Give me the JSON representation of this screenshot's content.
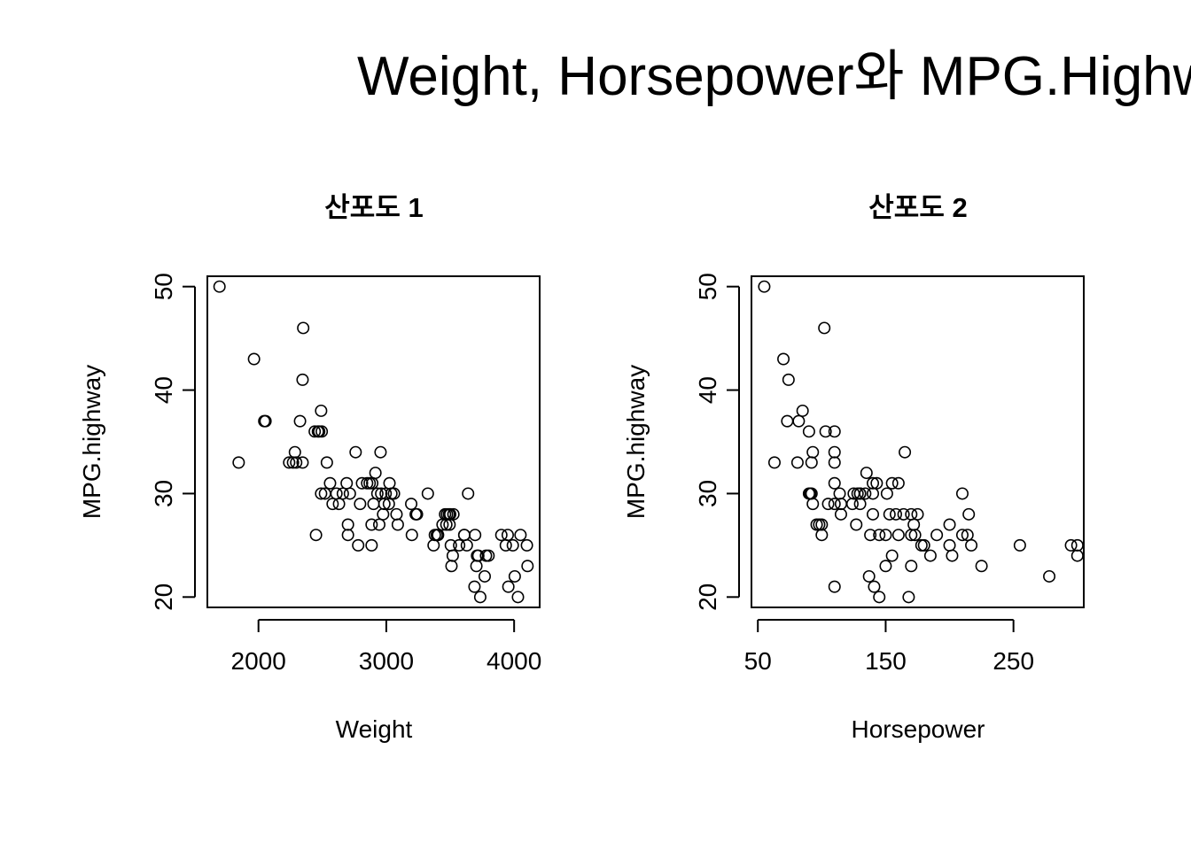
{
  "figure": {
    "title": "Weight, Horsepower와 MPG.Highway"
  },
  "chart_data": [
    {
      "type": "scatter",
      "title": "산포도 1",
      "xlabel": "Weight",
      "ylabel": "MPG.highway",
      "xlim": [
        1600,
        4200
      ],
      "ylim": [
        19,
        51
      ],
      "xticks": [
        2000,
        3000,
        4000
      ],
      "yticks": [
        20,
        30,
        40,
        50
      ],
      "grid": false,
      "legend": "none",
      "marker": "open-circle",
      "x": [
        1695,
        1845,
        1965,
        2045,
        2055,
        2240,
        2270,
        2285,
        2295,
        2325,
        2345,
        2350,
        2345,
        2440,
        2450,
        2465,
        2475,
        2490,
        2490,
        2495,
        2520,
        2535,
        2560,
        2580,
        2610,
        2630,
        2660,
        2690,
        2700,
        2715,
        2700,
        2760,
        2780,
        2795,
        2810,
        2850,
        2870,
        2885,
        2885,
        2890,
        2900,
        2915,
        2930,
        2945,
        2955,
        2960,
        2975,
        2985,
        2995,
        3020,
        3025,
        3040,
        3060,
        3080,
        3090,
        3195,
        3200,
        3230,
        3240,
        3325,
        3370,
        3380,
        3395,
        3405,
        3440,
        3460,
        3470,
        3475,
        3490,
        3495,
        3500,
        3505,
        3510,
        3520,
        3525,
        3570,
        3610,
        3610,
        3630,
        3640,
        3690,
        3695,
        3705,
        3710,
        3720,
        3735,
        3770,
        3780,
        3800,
        3900,
        3935,
        3950,
        3955,
        3990,
        4005,
        4030,
        4050,
        4100,
        4105
      ],
      "y": [
        50,
        33,
        43,
        37,
        37,
        33,
        33,
        34,
        33,
        37,
        33,
        46,
        41,
        36,
        26,
        36,
        36,
        38,
        30,
        36,
        30,
        33,
        31,
        29,
        30,
        29,
        30,
        31,
        27,
        30,
        26,
        34,
        25,
        29,
        31,
        31,
        31,
        25,
        27,
        31,
        29,
        32,
        30,
        27,
        34,
        30,
        28,
        29,
        30,
        29,
        31,
        30,
        30,
        28,
        27,
        29,
        26,
        28,
        28,
        30,
        25,
        26,
        26,
        26,
        27,
        28,
        27,
        28,
        28,
        27,
        28,
        25,
        23,
        24,
        28,
        25,
        26,
        26,
        25,
        30,
        21,
        26,
        23,
        24,
        24,
        20,
        22,
        24,
        24,
        26,
        25,
        26,
        21,
        25,
        22,
        20,
        26,
        25,
        23
      ]
    },
    {
      "type": "scatter",
      "title": "산포도 2",
      "xlabel": "Horsepower",
      "ylabel": "MPG.highway",
      "xlim": [
        45,
        305
      ],
      "ylim": [
        19,
        51
      ],
      "xticks": [
        50,
        150,
        250
      ],
      "yticks": [
        20,
        30,
        40,
        50
      ],
      "grid": false,
      "legend": "none",
      "marker": "open-circle",
      "x": [
        55,
        63,
        70,
        73,
        74,
        81,
        82,
        85,
        90,
        90,
        91,
        92,
        93,
        92,
        93,
        96,
        98,
        100,
        102,
        100,
        103,
        105,
        110,
        110,
        110,
        110,
        110,
        110,
        114,
        115,
        115,
        124,
        125,
        127,
        128,
        130,
        130,
        130,
        134,
        135,
        137,
        138,
        140,
        140,
        140,
        141,
        143,
        145,
        145,
        150,
        150,
        151,
        153,
        155,
        155,
        158,
        160,
        160,
        164,
        165,
        168,
        170,
        170,
        170,
        172,
        173,
        175,
        178,
        180,
        185,
        190,
        200,
        200,
        202,
        210,
        210,
        214,
        215,
        217,
        225,
        255,
        278,
        295,
        300,
        300
      ],
      "y": [
        50,
        33,
        43,
        37,
        41,
        33,
        37,
        38,
        36,
        30,
        30,
        33,
        34,
        30,
        29,
        27,
        27,
        26,
        46,
        27,
        36,
        29,
        21,
        29,
        36,
        34,
        33,
        31,
        30,
        28,
        29,
        29,
        30,
        27,
        30,
        30,
        29,
        30,
        30,
        32,
        22,
        26,
        31,
        28,
        30,
        21,
        31,
        26,
        20,
        26,
        23,
        30,
        28,
        24,
        31,
        28,
        31,
        26,
        28,
        34,
        20,
        23,
        26,
        28,
        27,
        26,
        28,
        25,
        25,
        24,
        26,
        25,
        27,
        24,
        30,
        26,
        26,
        28,
        25,
        23,
        25,
        22,
        25,
        25,
        24
      ]
    }
  ]
}
